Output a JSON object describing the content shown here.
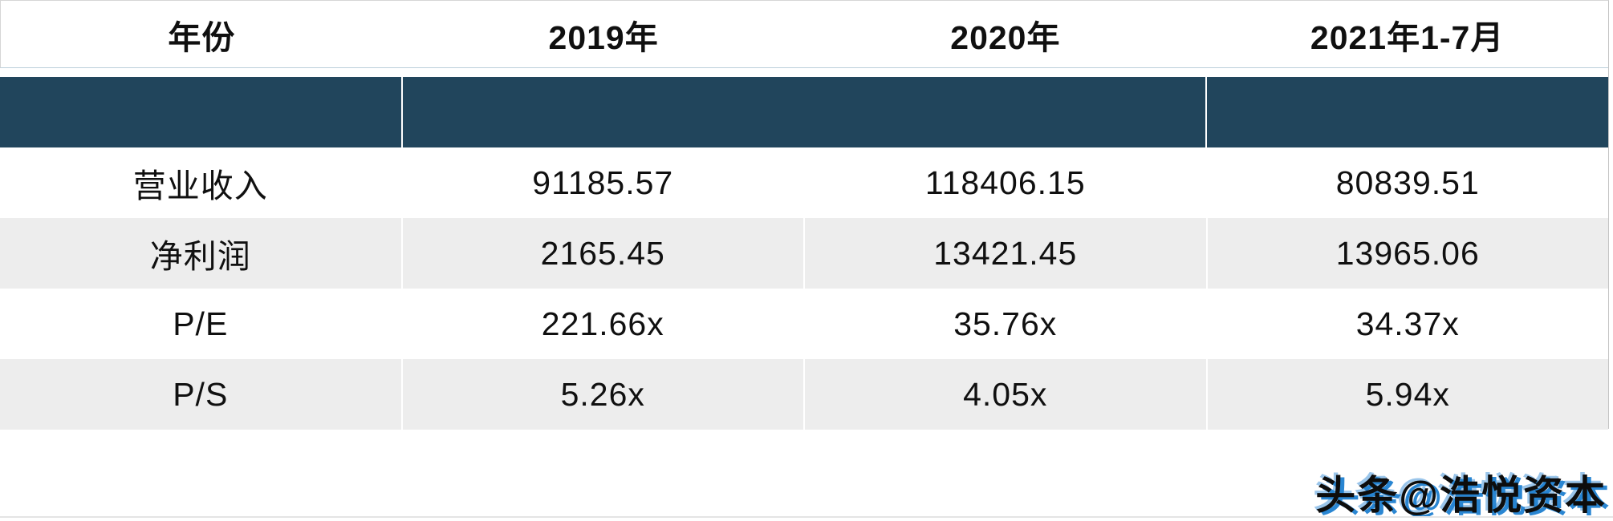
{
  "chart_data": {
    "type": "table",
    "columns": [
      "年份",
      "2019年",
      "2020年",
      "2021年1-7月"
    ],
    "rows": [
      [
        "营业收入",
        "91185.57",
        "118406.15",
        "80839.51"
      ],
      [
        "净利润",
        "2165.45",
        "13421.45",
        "13965.06"
      ],
      [
        "P/E",
        "221.66x",
        "35.76x",
        "34.37x"
      ],
      [
        "P/S",
        "5.26x",
        "4.05x",
        "5.94x"
      ]
    ],
    "layout_hints": {
      "header_position": "top",
      "blank_navy_band_below_header": true,
      "navy_band_segments": 3,
      "zebra_striping": "rows 2 and 4 light gray",
      "grid": "off"
    }
  },
  "watermark": {
    "text": "头条@浩悦资本"
  },
  "colors": {
    "navy": "#21455C",
    "row-alt": "#EDEDED",
    "header-underline": "#BCCFDA",
    "wm-black": "#0D0D0D",
    "wm-blue": "#1F7FD0"
  }
}
